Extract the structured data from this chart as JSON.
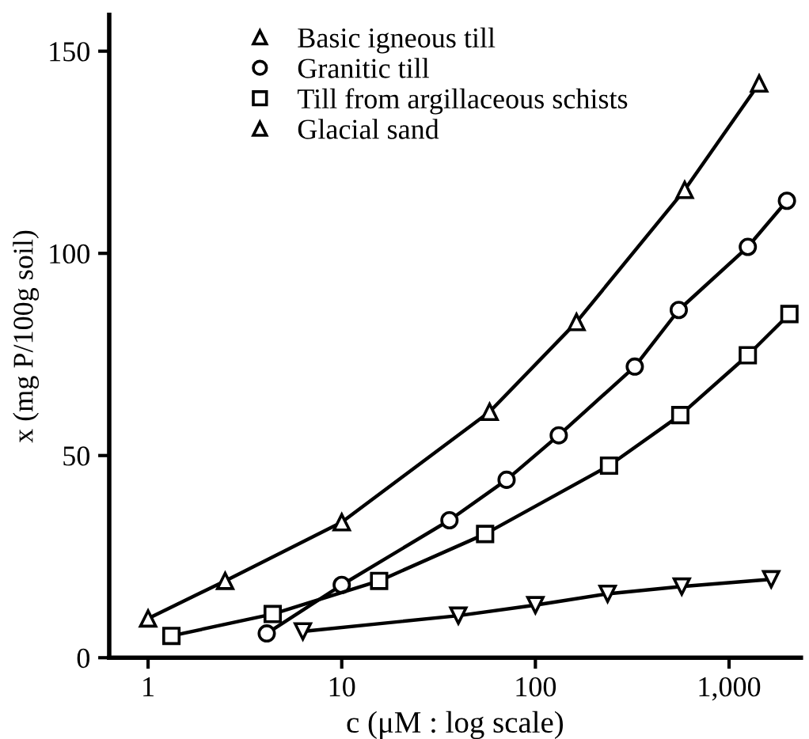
{
  "chart_data": {
    "type": "line",
    "xlabel": "c (μM : log scale)",
    "ylabel": "x (mg P/100g soil)",
    "log": "x",
    "xlim": [
      0.63,
      2350
    ],
    "xticks": [
      1,
      10,
      100,
      {
        "value": 1000,
        "label": "1,000"
      }
    ],
    "ylim": [
      0,
      159
    ],
    "yticks": [
      0,
      50,
      100,
      150
    ],
    "grid": false,
    "legend": "top left",
    "series": [
      {
        "name": "Basic igneous till",
        "color": "#000000",
        "marker": "triangle",
        "x": [
          1,
          2.5,
          10,
          58,
          163,
          590,
          1430
        ],
        "values": [
          9.7,
          19,
          33.5,
          60.8,
          83,
          115.7,
          142
        ]
      },
      {
        "name": "Granitic till",
        "color": "#000000",
        "marker": "circle",
        "x": [
          4.1,
          10,
          36,
          71,
          132,
          326,
          550,
          1250,
          1990
        ],
        "values": [
          6,
          18,
          34,
          44,
          55,
          72,
          86,
          101.6,
          113
        ]
      },
      {
        "name": "Till from argillaceous schists",
        "color": "#000000",
        "marker": "square",
        "x": [
          1.32,
          4.4,
          15.6,
          55,
          240,
          560,
          1250,
          2050
        ],
        "values": [
          5.4,
          10.8,
          19,
          30.6,
          47.5,
          60,
          74.8,
          85
        ]
      },
      {
        "name": "Glacial sand",
        "color": "#000000",
        "marker": "triangle",
        "x": [
          6.3,
          40,
          100,
          236,
          570,
          1650
        ],
        "values": [
          6.5,
          10.4,
          13,
          15.8,
          17.6,
          19.4
        ]
      }
    ]
  }
}
